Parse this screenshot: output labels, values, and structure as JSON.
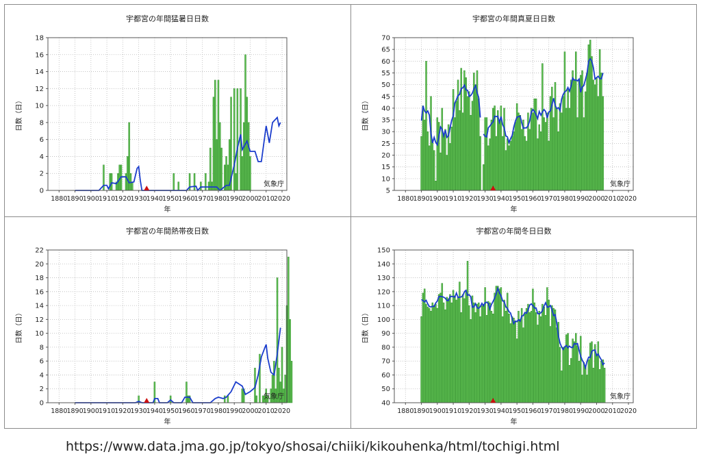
{
  "chart_data": [
    {
      "type": "bar",
      "title": "宇都宮の年間猛暑日日数",
      "xlabel": "年",
      "ylabel": "日数（日）",
      "credit": "気象庁",
      "xlim": [
        1873,
        2023
      ],
      "x_ticks": [
        1880,
        1890,
        1900,
        1910,
        1920,
        1930,
        1940,
        1950,
        1960,
        1970,
        1980,
        1990,
        2000,
        2010,
        2020
      ],
      "ylim": [
        0,
        18
      ],
      "y_ticks": [
        0,
        2,
        4,
        6,
        8,
        10,
        12,
        14,
        16,
        18
      ],
      "grid": true,
      "marker_year": 1935,
      "start_year": 1890,
      "values": [
        0,
        0,
        0,
        0,
        0,
        0,
        0,
        0,
        0,
        0,
        0,
        0,
        0,
        0,
        0,
        0,
        0,
        0,
        3,
        0,
        0,
        0,
        2,
        2,
        0,
        0,
        1,
        2,
        3,
        3,
        0,
        0,
        2,
        4,
        8,
        2,
        1,
        0,
        0,
        0,
        0,
        0,
        0,
        0,
        0,
        0,
        0,
        0,
        0,
        0,
        0,
        0,
        0,
        0,
        0,
        0,
        0,
        0,
        0,
        0,
        0,
        0,
        2,
        0,
        0,
        1,
        0,
        0,
        0,
        0,
        0,
        0,
        2,
        0,
        0,
        2,
        0,
        0,
        0,
        1,
        0,
        0,
        2,
        0,
        1,
        5,
        1,
        11,
        13,
        6,
        13,
        8,
        5,
        0,
        3,
        4,
        3,
        6,
        11,
        0,
        12,
        2,
        12,
        0,
        12,
        4,
        8,
        16,
        11,
        8,
        4
      ],
      "moving_avg": [
        {
          "x": 1890,
          "y": 0
        },
        {
          "x": 1905,
          "y": 0
        },
        {
          "x": 1908,
          "y": 0.6
        },
        {
          "x": 1910,
          "y": 0.6
        },
        {
          "x": 1911,
          "y": 0.2
        },
        {
          "x": 1913,
          "y": 0.9
        },
        {
          "x": 1916,
          "y": 0.8
        },
        {
          "x": 1919,
          "y": 1.6
        },
        {
          "x": 1922,
          "y": 1.6
        },
        {
          "x": 1924,
          "y": 0.9
        },
        {
          "x": 1927,
          "y": 1
        },
        {
          "x": 1929,
          "y": 2.6
        },
        {
          "x": 1930,
          "y": 2.8
        },
        {
          "x": 1931,
          "y": 1.2
        },
        {
          "x": 1932,
          "y": 0
        },
        {
          "x": 1960,
          "y": 0
        },
        {
          "x": 1962,
          "y": 0.4
        },
        {
          "x": 1966,
          "y": 0.5
        },
        {
          "x": 1967,
          "y": 0
        },
        {
          "x": 1969,
          "y": 0.4
        },
        {
          "x": 1979,
          "y": 0.4
        },
        {
          "x": 1981,
          "y": 0
        },
        {
          "x": 1985,
          "y": 0.6
        },
        {
          "x": 1987,
          "y": 0.6
        },
        {
          "x": 1990,
          "y": 3
        },
        {
          "x": 1992,
          "y": 5
        },
        {
          "x": 1994,
          "y": 6.6
        },
        {
          "x": 1995,
          "y": 4.8
        },
        {
          "x": 1998,
          "y": 5.8
        },
        {
          "x": 2000,
          "y": 4.6
        },
        {
          "x": 2003,
          "y": 4.6
        },
        {
          "x": 2005,
          "y": 3.4
        },
        {
          "x": 2007,
          "y": 3.4
        },
        {
          "x": 2010,
          "y": 7.6
        },
        {
          "x": 2012,
          "y": 5.6
        },
        {
          "x": 2014,
          "y": 8
        },
        {
          "x": 2017,
          "y": 8.6
        },
        {
          "x": 2018,
          "y": 7.6
        },
        {
          "x": 2019,
          "y": 8
        }
      ]
    },
    {
      "type": "bar",
      "title": "宇都宮の年間真夏日日数",
      "xlabel": "年",
      "ylabel": "日数（日）",
      "credit": "気象庁",
      "xlim": [
        1873,
        2023
      ],
      "x_ticks": [
        1880,
        1890,
        1900,
        1910,
        1920,
        1930,
        1940,
        1950,
        1960,
        1970,
        1980,
        1990,
        2000,
        2010,
        2020
      ],
      "ylim": [
        5,
        70
      ],
      "y_ticks": [
        5,
        10,
        15,
        20,
        25,
        30,
        35,
        40,
        45,
        50,
        55,
        60,
        65,
        70
      ],
      "grid": true,
      "marker_year": 1935,
      "start_year": 1890,
      "values": [
        28,
        41,
        35,
        60,
        30,
        24,
        45,
        26,
        22,
        9,
        36,
        34,
        21,
        40,
        29,
        31,
        20,
        33,
        25,
        32,
        48,
        36,
        43,
        52,
        39,
        57,
        38,
        56,
        53,
        45,
        47,
        37,
        43,
        55,
        50,
        56,
        44,
        28,
        null,
        16,
        36,
        36,
        24,
        27,
        35,
        40,
        41,
        28,
        39,
        34,
        41,
        28,
        40,
        22,
        27,
        24,
        26,
        28,
        30,
        34,
        42,
        38,
        37,
        31,
        35,
        28,
        26,
        38,
        31,
        40,
        38,
        44,
        44,
        27,
        33,
        30,
        59,
        36,
        34,
        38,
        26,
        45,
        49,
        36,
        51,
        40,
        30,
        42,
        38,
        45,
        64,
        40,
        48,
        40,
        52,
        56,
        52,
        64,
        36,
        52,
        54,
        56,
        36,
        47,
        55,
        67,
        69,
        62,
        52,
        50,
        53,
        45,
        65,
        55,
        45
      ]
    },
    {
      "type": "bar",
      "title": "宇都宮の年間熱帯夜日数",
      "xlabel": "年",
      "ylabel": "日数（日）",
      "credit": "気象庁",
      "xlim": [
        1873,
        2023
      ],
      "x_ticks": [
        1880,
        1890,
        1900,
        1910,
        1920,
        1930,
        1940,
        1950,
        1960,
        1970,
        1980,
        1990,
        2000,
        2010,
        2020
      ],
      "ylim": [
        0,
        22
      ],
      "y_ticks": [
        0,
        2,
        4,
        6,
        8,
        10,
        12,
        14,
        16,
        18,
        20,
        22
      ],
      "grid": true,
      "marker_year": 1935,
      "start_year": 1890,
      "values": [
        0,
        0,
        0,
        0,
        0,
        0,
        0,
        0,
        0,
        0,
        0,
        0,
        0,
        0,
        0,
        0,
        0,
        0,
        0,
        0,
        0,
        0,
        0,
        0,
        0,
        0,
        0,
        0,
        0,
        0,
        0,
        0,
        0,
        0,
        0,
        0,
        0,
        0,
        0,
        0,
        1,
        0,
        0,
        0,
        0,
        0,
        0,
        0,
        0,
        0,
        3,
        0,
        0,
        0,
        0,
        0,
        0,
        0,
        0,
        0,
        1,
        0,
        0,
        0,
        0,
        0,
        0,
        0,
        0,
        0,
        3,
        1,
        1,
        0,
        0,
        0,
        0,
        0,
        0,
        0,
        0,
        0,
        0,
        0,
        0,
        0,
        0,
        0,
        0,
        0,
        0,
        0,
        0,
        0,
        1,
        0,
        1,
        0,
        0,
        0,
        0,
        0,
        0,
        0,
        0,
        2,
        2,
        0,
        0,
        0,
        0,
        0,
        0,
        5,
        1,
        0,
        7,
        0,
        1,
        1,
        2,
        1,
        0,
        2,
        4,
        6,
        2,
        18,
        5,
        3,
        8,
        2,
        4,
        14,
        21,
        12,
        6
      ],
      "moving_avg": [
        {
          "x": 1890,
          "y": 0
        },
        {
          "x": 1928,
          "y": 0
        },
        {
          "x": 1930,
          "y": 0.2
        },
        {
          "x": 1932,
          "y": 0
        },
        {
          "x": 1939,
          "y": 0
        },
        {
          "x": 1940,
          "y": 0.6
        },
        {
          "x": 1942,
          "y": 0.6
        },
        {
          "x": 1943,
          "y": 0
        },
        {
          "x": 1948,
          "y": 0
        },
        {
          "x": 1950,
          "y": 0.4
        },
        {
          "x": 1952,
          "y": 0
        },
        {
          "x": 1957,
          "y": 0
        },
        {
          "x": 1959,
          "y": 0.8
        },
        {
          "x": 1962,
          "y": 0.8
        },
        {
          "x": 1964,
          "y": 0
        },
        {
          "x": 1975,
          "y": 0
        },
        {
          "x": 1978,
          "y": 0.6
        },
        {
          "x": 1980,
          "y": 0.8
        },
        {
          "x": 1983,
          "y": 0.6
        },
        {
          "x": 1985,
          "y": 0.8
        },
        {
          "x": 1988,
          "y": 1.6
        },
        {
          "x": 1991,
          "y": 3
        },
        {
          "x": 1995,
          "y": 2.4
        },
        {
          "x": 1997,
          "y": 1.2
        },
        {
          "x": 2000,
          "y": 1.6
        },
        {
          "x": 2003,
          "y": 2.2
        },
        {
          "x": 2005,
          "y": 4
        },
        {
          "x": 2007,
          "y": 6.6
        },
        {
          "x": 2009,
          "y": 7.8
        },
        {
          "x": 2010,
          "y": 8.4
        },
        {
          "x": 2011,
          "y": 6.4
        },
        {
          "x": 2013,
          "y": 4.4
        },
        {
          "x": 2015,
          "y": 4
        },
        {
          "x": 2017,
          "y": 7
        },
        {
          "x": 2019,
          "y": 10.8
        }
      ]
    },
    {
      "type": "bar",
      "title": "宇都宮の年間冬日日数",
      "xlabel": "年",
      "ylabel": "日数（日）",
      "credit": "気象庁",
      "xlim": [
        1873,
        2023
      ],
      "x_ticks": [
        1880,
        1890,
        1900,
        1910,
        1920,
        1930,
        1940,
        1950,
        1960,
        1970,
        1980,
        1990,
        2000,
        2010,
        2020
      ],
      "ylim": [
        40,
        150
      ],
      "y_ticks": [
        40,
        50,
        60,
        70,
        80,
        90,
        100,
        110,
        120,
        130,
        140,
        150
      ],
      "grid": true,
      "marker_year": 1935,
      "start_year": 1890,
      "values": [
        102,
        119,
        122,
        111,
        109,
        108,
        106,
        112,
        110,
        111,
        108,
        118,
        119,
        126,
        112,
        107,
        116,
        115,
        118,
        112,
        121,
        117,
        114,
        116,
        127,
        105,
        118,
        115,
        120,
        142,
        110,
        100,
        117,
        112,
        105,
        111,
        112,
        102,
        110,
        111,
        123,
        103,
        113,
        112,
        106,
        104,
        119,
        124,
        124,
        122,
        123,
        102,
        114,
        106,
        119,
        104,
        97,
        102,
        101,
        99,
        86,
        106,
        100,
        108,
        94,
        104,
        108,
        111,
        105,
        106,
        122,
        112,
        105,
        96,
        106,
        102,
        111,
        109,
        103,
        123,
        114,
        95,
        110,
        108,
        107,
        94,
        98,
        80,
        63,
        80,
        80,
        89,
        90,
        67,
        72,
        86,
        84,
        90,
        81,
        70,
        88,
        60,
        69,
        66,
        60,
        71,
        83,
        84,
        65,
        82,
        75,
        84,
        64,
        70,
        71,
        65
      ]
    }
  ],
  "footer": {
    "url": "https://www.data.jma.go.jp/tokyo/shosai/chiiki/kikouhenka/html/tochigi.html"
  }
}
